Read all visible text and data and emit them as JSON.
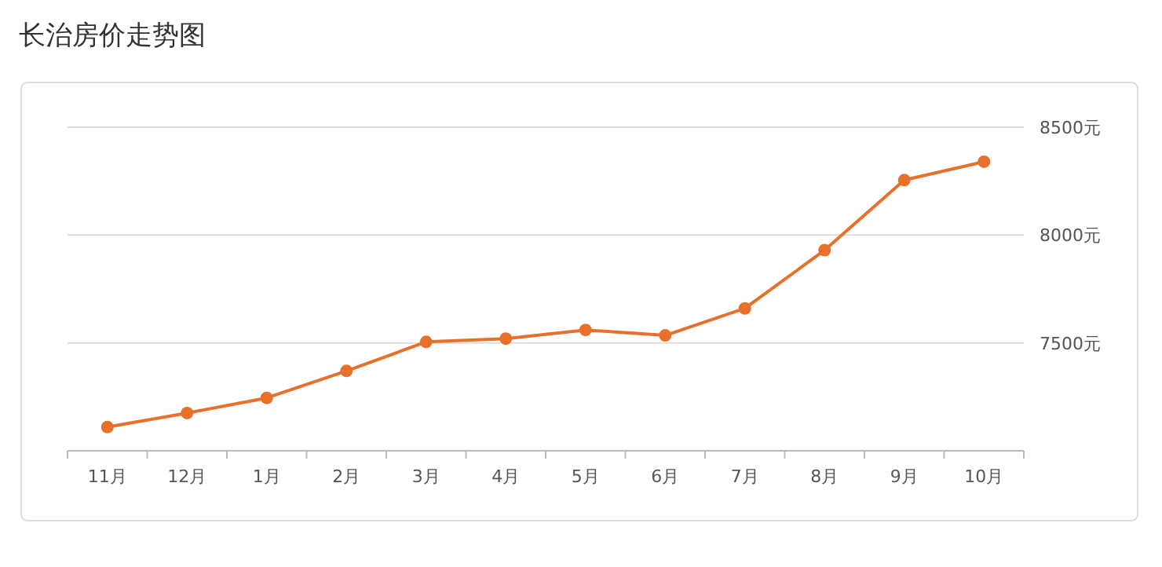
{
  "chart_data": {
    "type": "line",
    "title": "长治房价走势图",
    "categories": [
      "11月",
      "12月",
      "1月",
      "2月",
      "3月",
      "4月",
      "5月",
      "6月",
      "7月",
      "8月",
      "9月",
      "10月"
    ],
    "series": [
      {
        "color": "#e8702a",
        "values": [
          7110,
          7175,
          7245,
          7370,
          7505,
          7520,
          7560,
          7535,
          7660,
          7930,
          8255,
          8340
        ]
      }
    ],
    "ylim": [
      7000,
      8500
    ],
    "yticks": [
      {
        "value": 7500,
        "label": "7500元"
      },
      {
        "value": 8000,
        "label": "8000元"
      },
      {
        "value": 8500,
        "label": "8500元"
      }
    ],
    "grid": "y",
    "marker": "circle",
    "line_style": "solid"
  }
}
